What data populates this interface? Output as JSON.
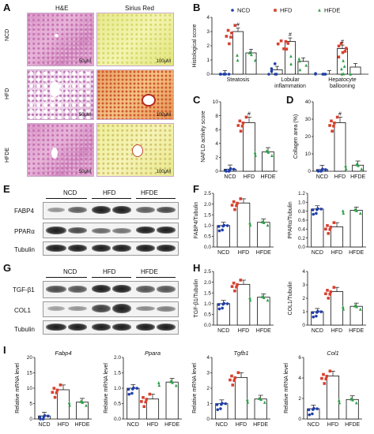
{
  "panel_labels": [
    "A",
    "B",
    "C",
    "D",
    "E",
    "F",
    "G",
    "H",
    "I"
  ],
  "histology": {
    "column_headers": [
      "H&E",
      "Sirius Red"
    ],
    "row_labels": [
      "NCD",
      "HFD",
      "HFDE"
    ],
    "scale_he": "50μM",
    "scale_sr": "100μM"
  },
  "colors": {
    "ncd": "#1f3ea8",
    "hfd": "#d8402f",
    "hfde": "#2fa04a"
  },
  "blot_E": {
    "groups": [
      "NCD",
      "HFD",
      "HFDE"
    ],
    "rows": [
      "FABP4",
      "PPARα",
      "Tubulin"
    ]
  },
  "blot_G": {
    "groups": [
      "NCD",
      "HFD",
      "HFDE"
    ],
    "rows": [
      "TGF-β1",
      "COL1",
      "Tubulin"
    ]
  },
  "chart_data": [
    {
      "panel": "B",
      "type": "bar",
      "legend": [
        "NCD",
        "HFD",
        "HFDE"
      ],
      "ylabel": "Histological score",
      "categories": [
        "Steatosis",
        "Lobular inflammation",
        "Hepatocyte ballooning"
      ],
      "yticks": [
        "0",
        "1",
        "2",
        "3",
        "4"
      ],
      "ylim": [
        0,
        4
      ],
      "series": [
        {
          "name": "NCD",
          "values": [
            0.0,
            0.3,
            0.0
          ]
        },
        {
          "name": "HFD",
          "values": [
            3.0,
            2.3,
            1.8
          ]
        },
        {
          "name": "HFDE",
          "values": [
            1.5,
            0.9,
            0.5
          ]
        }
      ],
      "annotation": "#"
    },
    {
      "panel": "C",
      "type": "bar",
      "ylabel": "NAFLD activity score",
      "categories": [
        "NCD",
        "HFD",
        "HFDE"
      ],
      "yticks": [
        "0",
        "2",
        "4",
        "6",
        "8",
        "10"
      ],
      "ylim": [
        0,
        10
      ],
      "values": [
        0.3,
        7.0,
        2.8
      ],
      "annotation": "#"
    },
    {
      "panel": "D",
      "type": "bar",
      "ylabel": "Collagen area (%)",
      "categories": [
        "NCD",
        "HFD",
        "HFDE"
      ],
      "yticks": [
        "0",
        "10",
        "20",
        "30",
        "40"
      ],
      "ylim": [
        0,
        40
      ],
      "values": [
        1.0,
        28.0,
        3.5
      ],
      "annotation": "#"
    },
    {
      "panel": "F1",
      "type": "bar",
      "ylabel": "FABP4/Tubulin",
      "categories": [
        "NCD",
        "HFD",
        "HFDE"
      ],
      "yticks": [
        "0.0",
        "0.5",
        "1.0",
        "1.5",
        "2.0",
        "2.5"
      ],
      "ylim": [
        0,
        2.5
      ],
      "values": [
        1.0,
        2.05,
        1.15
      ]
    },
    {
      "panel": "F2",
      "type": "bar",
      "ylabel": "PPARα/Tubulin",
      "categories": [
        "NCD",
        "HFD",
        "HFDE"
      ],
      "yticks": [
        "0.0",
        "0.2",
        "0.4",
        "0.6",
        "0.8",
        "1.0",
        "1.2"
      ],
      "ylim": [
        0,
        1.2
      ],
      "values": [
        0.85,
        0.45,
        0.82
      ]
    },
    {
      "panel": "H1",
      "type": "bar",
      "ylabel": "TGF-β1/Tubulin",
      "categories": [
        "NCD",
        "HFD",
        "HFDE"
      ],
      "yticks": [
        "0.0",
        "0.5",
        "1.0",
        "1.5",
        "2.0",
        "2.5"
      ],
      "ylim": [
        0,
        2.5
      ],
      "values": [
        1.0,
        1.9,
        1.3
      ]
    },
    {
      "panel": "H2",
      "type": "bar",
      "ylabel": "COL1/Tubulin",
      "categories": [
        "NCD",
        "HFD",
        "HFDE"
      ],
      "yticks": [
        "0",
        "1",
        "2",
        "3",
        "4"
      ],
      "ylim": [
        0,
        4
      ],
      "values": [
        1.0,
        2.5,
        1.4
      ]
    },
    {
      "panel": "I1",
      "type": "bar",
      "title": "Fabp4",
      "ylabel": "Relative mRNA level",
      "categories": [
        "NCD",
        "HFD",
        "HFDE"
      ],
      "yticks": [
        "0",
        "5",
        "10",
        "15",
        "20"
      ],
      "ylim": [
        0,
        20
      ],
      "values": [
        1.0,
        9.5,
        5.5
      ]
    },
    {
      "panel": "I2",
      "type": "bar",
      "title": "Ppara",
      "ylabel": "Relative mRNA level",
      "categories": [
        "NCD",
        "HFD",
        "HFDE"
      ],
      "yticks": [
        "0.0",
        "0.5",
        "1.0",
        "1.5",
        "2.0"
      ],
      "ylim": [
        0,
        2
      ],
      "values": [
        1.0,
        0.65,
        1.2
      ]
    },
    {
      "panel": "I3",
      "type": "bar",
      "title": "Tgfb1",
      "ylabel": "Relative mRNA level",
      "categories": [
        "NCD",
        "HFD",
        "HFDE"
      ],
      "yticks": [
        "0",
        "1",
        "2",
        "3",
        "4"
      ],
      "ylim": [
        0,
        4
      ],
      "values": [
        1.0,
        2.7,
        1.3
      ]
    },
    {
      "panel": "I4",
      "type": "bar",
      "title": "Col1",
      "ylabel": "Relative mRNA level",
      "categories": [
        "NCD",
        "HFD",
        "HFDE"
      ],
      "yticks": [
        "0",
        "2",
        "4",
        "6"
      ],
      "ylim": [
        0,
        6
      ],
      "values": [
        1.0,
        4.2,
        1.9
      ]
    }
  ]
}
